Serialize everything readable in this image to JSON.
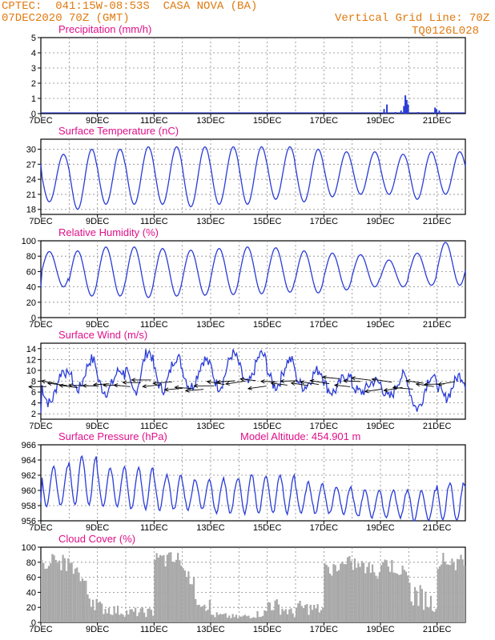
{
  "header": {
    "line1": "CPTEC:  041:15W-08:53S  CASA NOVA (BA)",
    "line2": "07DEC2020 70Z (GMT)",
    "right1": "Vertical Grid Line: 70Z",
    "right2": "TQ0126L028"
  },
  "colors": {
    "header": "#e07a10",
    "title": "#e0108a",
    "series": "#2a3cd8",
    "cloud": "#a8a8a8"
  },
  "chart_data": [
    {
      "type": "bar",
      "title": "Precipitation (mm/h)",
      "ylim": [
        0,
        5
      ],
      "yticks": [
        0,
        1,
        2,
        3,
        4,
        5
      ],
      "xticks": [
        "7DEC",
        "9DEC",
        "11DEC",
        "13DEC",
        "15DEC",
        "17DEC",
        "19DEC",
        "21DEC"
      ],
      "xrange": [
        0,
        15
      ],
      "bars": [
        [
          12.1,
          0.3
        ],
        [
          12.2,
          0.6
        ],
        [
          12.5,
          0.1
        ],
        [
          12.7,
          0.2
        ],
        [
          12.8,
          0.5
        ],
        [
          12.85,
          1.2
        ],
        [
          12.9,
          0.9
        ],
        [
          12.95,
          0.6
        ],
        [
          13.3,
          0.1
        ],
        [
          13.9,
          0.4
        ],
        [
          13.95,
          0.3
        ],
        [
          14.05,
          0.2
        ]
      ]
    },
    {
      "type": "line",
      "title": "Surface Temperature (nC)",
      "ylim": [
        17,
        32
      ],
      "yticks": [
        18,
        21,
        24,
        27,
        30
      ],
      "xticks": [
        "7DEC",
        "9DEC",
        "11DEC",
        "13DEC",
        "15DEC",
        "17DEC",
        "19DEC",
        "21DEC"
      ],
      "xrange": [
        0,
        15
      ],
      "days": [
        {
          "max": 29,
          "min": 19.5
        },
        {
          "max": 30,
          "min": 18
        },
        {
          "max": 30,
          "min": 19
        },
        {
          "max": 30.5,
          "min": 19
        },
        {
          "max": 30.5,
          "min": 19
        },
        {
          "max": 30.5,
          "min": 18.5
        },
        {
          "max": 30.5,
          "min": 19
        },
        {
          "max": 30.5,
          "min": 19
        },
        {
          "max": 30.5,
          "min": 20
        },
        {
          "max": 30,
          "min": 19.5
        },
        {
          "max": 29.5,
          "min": 20.5
        },
        {
          "max": 29.5,
          "min": 21
        },
        {
          "max": 29,
          "min": 21
        },
        {
          "max": 29.5,
          "min": 20
        },
        {
          "max": 29.5,
          "min": 21
        }
      ],
      "start": 27
    },
    {
      "type": "line",
      "title": "Relative Humidity (%)",
      "ylim": [
        0,
        100
      ],
      "yticks": [
        0,
        20,
        40,
        60,
        80,
        100
      ],
      "xticks": [
        "7DEC",
        "9DEC",
        "11DEC",
        "13DEC",
        "15DEC",
        "17DEC",
        "19DEC",
        "21DEC"
      ],
      "xrange": [
        0,
        15
      ],
      "days": [
        {
          "max": 86,
          "min": 40
        },
        {
          "max": 87,
          "min": 28
        },
        {
          "max": 92,
          "min": 28
        },
        {
          "max": 92,
          "min": 26
        },
        {
          "max": 90,
          "min": 28
        },
        {
          "max": 88,
          "min": 29
        },
        {
          "max": 90,
          "min": 30
        },
        {
          "max": 92,
          "min": 31
        },
        {
          "max": 91,
          "min": 33
        },
        {
          "max": 87,
          "min": 32
        },
        {
          "max": 84,
          "min": 36
        },
        {
          "max": 82,
          "min": 40
        },
        {
          "max": 75,
          "min": 40
        },
        {
          "max": 84,
          "min": 42
        },
        {
          "max": 98,
          "min": 42
        }
      ],
      "start": 40
    },
    {
      "type": "line",
      "title": "Surface Wind (m/s)",
      "ylim": [
        1,
        15
      ],
      "yticks": [
        2,
        4,
        6,
        8,
        10,
        12,
        14
      ],
      "xticks": [
        "7DEC",
        "9DEC",
        "11DEC",
        "13DEC",
        "15DEC",
        "17DEC",
        "19DEC",
        "21DEC"
      ],
      "xrange": [
        0,
        15
      ],
      "days": [
        {
          "max": 10,
          "min": 4
        },
        {
          "max": 12,
          "min": 6.5
        },
        {
          "max": 10,
          "min": 6
        },
        {
          "max": 13.5,
          "min": 6
        },
        {
          "max": 12.5,
          "min": 6.5
        },
        {
          "max": 12,
          "min": 7
        },
        {
          "max": 13,
          "min": 7
        },
        {
          "max": 13,
          "min": 7.5
        },
        {
          "max": 12,
          "min": 7
        },
        {
          "max": 10,
          "min": 7
        },
        {
          "max": 9,
          "min": 6
        },
        {
          "max": 8,
          "min": 6
        },
        {
          "max": 9,
          "min": 5
        },
        {
          "max": 9,
          "min": 3
        },
        {
          "max": 9,
          "min": 5
        }
      ],
      "start": 2
    },
    {
      "type": "line",
      "title": "Surface Pressure (hPa)",
      "subtitle": "Model Altitude: 454.901  m",
      "ylim": [
        956,
        966
      ],
      "yticks": [
        956,
        958,
        960,
        962,
        964,
        966
      ],
      "xticks": [
        "7DEC",
        "9DEC",
        "11DEC",
        "13DEC",
        "15DEC",
        "17DEC",
        "19DEC",
        "21DEC"
      ],
      "xrange": [
        0,
        15
      ],
      "days": [
        {
          "max": 963,
          "min": 958
        },
        {
          "max": 964.5,
          "min": 958
        },
        {
          "max": 963,
          "min": 958
        },
        {
          "max": 963,
          "min": 957.5
        },
        {
          "max": 962,
          "min": 957.5
        },
        {
          "max": 961.5,
          "min": 957.5
        },
        {
          "max": 961.5,
          "min": 957
        },
        {
          "max": 962,
          "min": 957
        },
        {
          "max": 962,
          "min": 957
        },
        {
          "max": 961,
          "min": 957
        },
        {
          "max": 960.5,
          "min": 957
        },
        {
          "max": 960,
          "min": 956.5
        },
        {
          "max": 960,
          "min": 956.5
        },
        {
          "max": 960,
          "min": 956
        },
        {
          "max": 961,
          "min": 956
        }
      ],
      "start": 958.5
    },
    {
      "type": "area",
      "title": "Cloud Cover (%)",
      "ylim": [
        0,
        100
      ],
      "yticks": [
        0,
        20,
        40,
        60,
        80,
        100
      ],
      "xticks": [
        "7DEC",
        "9DEC",
        "11DEC",
        "13DEC",
        "15DEC",
        "17DEC",
        "19DEC",
        "21DEC"
      ],
      "xrange": [
        0,
        15
      ],
      "daily": [
        [
          95,
          90
        ],
        [
          85,
          40
        ],
        [
          30,
          20
        ],
        [
          20,
          20
        ],
        [
          95,
          95
        ],
        [
          80,
          30
        ],
        [
          15,
          10
        ],
        [
          10,
          20
        ],
        [
          40,
          15
        ],
        [
          30,
          25
        ],
        [
          80,
          90
        ],
        [
          90,
          75
        ],
        [
          95,
          70
        ],
        [
          60,
          35
        ],
        [
          95,
          90
        ]
      ]
    }
  ]
}
